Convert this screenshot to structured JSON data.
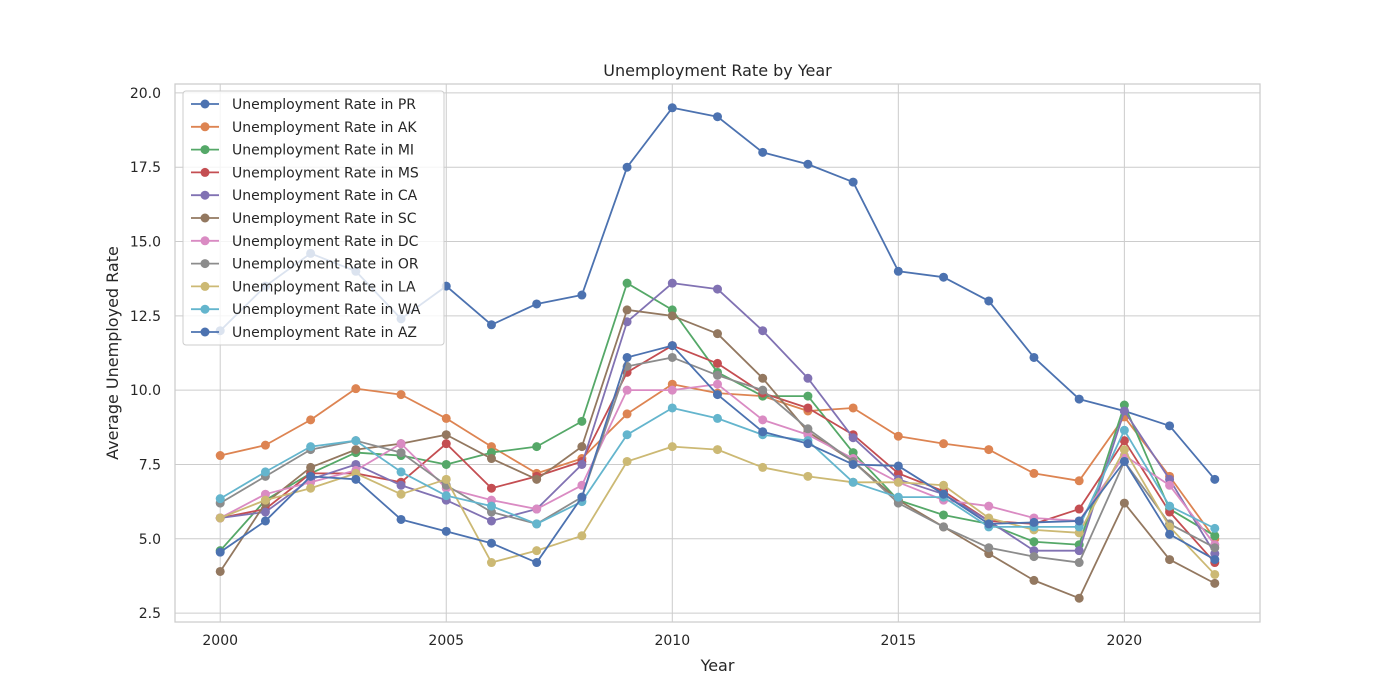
{
  "chart_data": {
    "type": "line",
    "title": "Unemployment Rate by Year",
    "xlabel": "Year",
    "ylabel": "Average Unemployed Rate",
    "xlim": [
      1999,
      2023
    ],
    "ylim": [
      2.2,
      20.3
    ],
    "xticks": [
      2000,
      2005,
      2010,
      2015,
      2020
    ],
    "yticks": [
      2.5,
      5.0,
      7.5,
      10.0,
      12.5,
      15.0,
      17.5,
      20.0
    ],
    "ytick_labels": [
      "2.5",
      "5.0",
      "7.5",
      "10.0",
      "12.5",
      "15.0",
      "17.5",
      "20.0"
    ],
    "grid": true,
    "legend_position": "top-left",
    "x": [
      2000,
      2001,
      2002,
      2003,
      2004,
      2005,
      2006,
      2007,
      2008,
      2009,
      2010,
      2011,
      2012,
      2013,
      2014,
      2015,
      2016,
      2017,
      2018,
      2019,
      2020,
      2021,
      2022
    ],
    "series": [
      {
        "name": "Unemployment Rate in PR",
        "color": "#4c72b0",
        "values": [
          12.0,
          13.5,
          14.6,
          14.0,
          12.4,
          13.5,
          12.2,
          12.9,
          13.2,
          17.5,
          19.5,
          19.2,
          18.0,
          17.6,
          17.0,
          14.0,
          13.8,
          13.0,
          11.1,
          9.7,
          9.3,
          8.8,
          7.0
        ]
      },
      {
        "name": "Unemployment Rate in AK",
        "color": "#dd8452",
        "values": [
          7.8,
          8.15,
          9.0,
          10.05,
          9.85,
          9.05,
          8.1,
          7.2,
          7.7,
          9.2,
          10.2,
          9.9,
          9.8,
          9.3,
          9.4,
          8.45,
          8.2,
          8.0,
          7.2,
          6.95,
          9.1,
          7.1,
          5.0
        ]
      },
      {
        "name": "Unemployment Rate in MI",
        "color": "#55a868",
        "values": [
          4.6,
          6.3,
          7.2,
          7.9,
          7.8,
          7.5,
          7.9,
          8.1,
          8.95,
          13.6,
          12.7,
          10.6,
          9.8,
          9.8,
          7.9,
          6.3,
          5.8,
          5.5,
          4.9,
          4.8,
          9.5,
          6.0,
          5.1
        ]
      },
      {
        "name": "Unemployment Rate in MS",
        "color": "#c44e52",
        "values": [
          5.7,
          6.0,
          7.2,
          7.2,
          6.9,
          8.2,
          6.7,
          7.1,
          7.6,
          10.6,
          11.5,
          10.9,
          9.9,
          9.4,
          8.5,
          7.2,
          6.6,
          5.6,
          5.5,
          6.0,
          8.3,
          5.9,
          4.2
        ]
      },
      {
        "name": "Unemployment Rate in CA",
        "color": "#8172b3",
        "values": [
          5.7,
          5.9,
          7.0,
          7.5,
          6.8,
          6.3,
          5.6,
          6.0,
          7.5,
          12.3,
          13.6,
          13.4,
          12.0,
          10.4,
          8.4,
          7.0,
          6.5,
          5.6,
          4.6,
          4.6,
          9.3,
          7.0,
          4.5
        ]
      },
      {
        "name": "Unemployment Rate in SC",
        "color": "#937860",
        "values": [
          3.9,
          6.2,
          7.4,
          8.0,
          8.2,
          8.5,
          7.7,
          7.0,
          8.1,
          12.7,
          12.5,
          11.9,
          10.4,
          8.6,
          7.6,
          6.3,
          5.4,
          4.5,
          3.6,
          3.0,
          6.2,
          4.3,
          3.5
        ]
      },
      {
        "name": "Unemployment Rate in DC",
        "color": "#da8bc3",
        "values": [
          5.7,
          6.5,
          6.9,
          7.3,
          8.2,
          6.7,
          6.3,
          6.0,
          6.8,
          10.0,
          10.0,
          10.2,
          9.0,
          8.5,
          7.7,
          6.9,
          6.3,
          6.1,
          5.7,
          5.6,
          7.8,
          6.8,
          4.8
        ]
      },
      {
        "name": "Unemployment Rate in OR",
        "color": "#8c8c8c",
        "values": [
          6.2,
          7.1,
          8.0,
          8.3,
          7.9,
          6.8,
          5.9,
          5.5,
          6.4,
          10.8,
          11.1,
          10.5,
          10.0,
          8.7,
          7.6,
          6.2,
          5.4,
          4.7,
          4.4,
          4.2,
          7.6,
          5.5,
          4.7
        ]
      },
      {
        "name": "Unemployment Rate in LA",
        "color": "#ccb974",
        "values": [
          5.7,
          6.3,
          6.7,
          7.2,
          6.5,
          7.0,
          4.2,
          4.6,
          5.1,
          7.6,
          8.1,
          8.0,
          7.4,
          7.1,
          6.9,
          6.9,
          6.8,
          5.7,
          5.3,
          5.2,
          8.0,
          5.4,
          3.8
        ]
      },
      {
        "name": "Unemployment Rate in WA",
        "color": "#64b5cd",
        "values": [
          6.35,
          7.25,
          8.1,
          8.3,
          7.25,
          6.45,
          6.1,
          5.5,
          6.25,
          8.5,
          9.4,
          9.05,
          8.5,
          8.3,
          6.9,
          6.4,
          6.4,
          5.4,
          5.4,
          5.4,
          8.65,
          6.1,
          5.35
        ]
      },
      {
        "name": "Unemployment Rate in AZ",
        "color": "#4c72b0",
        "values": [
          4.55,
          5.6,
          7.1,
          7.0,
          5.65,
          5.25,
          4.85,
          4.2,
          6.4,
          11.1,
          11.5,
          9.85,
          8.6,
          8.2,
          7.5,
          7.45,
          6.5,
          5.5,
          5.55,
          5.6,
          7.6,
          5.15,
          4.3
        ]
      }
    ]
  }
}
